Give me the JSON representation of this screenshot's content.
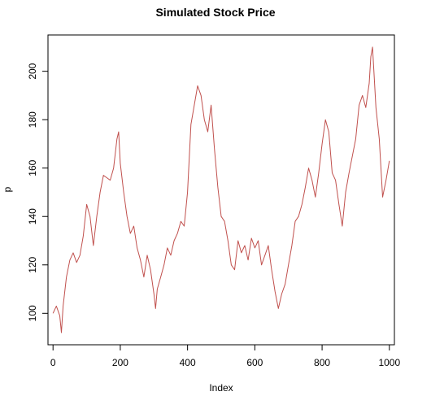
{
  "chart_data": {
    "type": "line",
    "title": "Simulated Stock Price",
    "xlabel": "Index",
    "ylabel": "p",
    "xlim": [
      -15,
      1015
    ],
    "ylim": [
      87,
      215
    ],
    "x_ticks": [
      0,
      200,
      400,
      600,
      800,
      1000
    ],
    "y_ticks": [
      100,
      120,
      140,
      160,
      180,
      200
    ],
    "grid": false,
    "color": "#c0504d",
    "series": [
      {
        "x": [
          0,
          10,
          20,
          25,
          30,
          40,
          50,
          60,
          70,
          80,
          90,
          100,
          110,
          120,
          130,
          140,
          150,
          160,
          170,
          180,
          190,
          195,
          200,
          210,
          220,
          230,
          240,
          250,
          260,
          270,
          280,
          290,
          300,
          305,
          310,
          320,
          330,
          340,
          350,
          360,
          370,
          380,
          390,
          400,
          410,
          420,
          430,
          440,
          450,
          460,
          470,
          480,
          490,
          500,
          510,
          520,
          530,
          540,
          550,
          560,
          570,
          580,
          590,
          600,
          610,
          620,
          630,
          640,
          650,
          660,
          670,
          680,
          690,
          700,
          710,
          720,
          730,
          740,
          750,
          760,
          770,
          780,
          790,
          800,
          810,
          820,
          830,
          840,
          850,
          860,
          870,
          880,
          890,
          900,
          910,
          920,
          930,
          940,
          945,
          950,
          960,
          970,
          980,
          990,
          1000
        ],
        "y": [
          100,
          103,
          99,
          92,
          103,
          115,
          122,
          125,
          121,
          124,
          132,
          145,
          140,
          128,
          140,
          150,
          157,
          156,
          155,
          160,
          172,
          175,
          162,
          150,
          140,
          133,
          136,
          127,
          122,
          115,
          124,
          118,
          108,
          102,
          110,
          115,
          120,
          127,
          124,
          130,
          133,
          138,
          136,
          150,
          178,
          186,
          194,
          190,
          180,
          175,
          186,
          168,
          152,
          140,
          138,
          130,
          120,
          118,
          130,
          125,
          128,
          122,
          131,
          127,
          130,
          120,
          124,
          128,
          118,
          109,
          102,
          108,
          112,
          120,
          128,
          138,
          140,
          145,
          152,
          160,
          155,
          148,
          158,
          170,
          180,
          175,
          158,
          155,
          145,
          136,
          150,
          158,
          165,
          172,
          186,
          190,
          185,
          195,
          206,
          210,
          185,
          172,
          148,
          155,
          163
        ]
      }
    ]
  }
}
